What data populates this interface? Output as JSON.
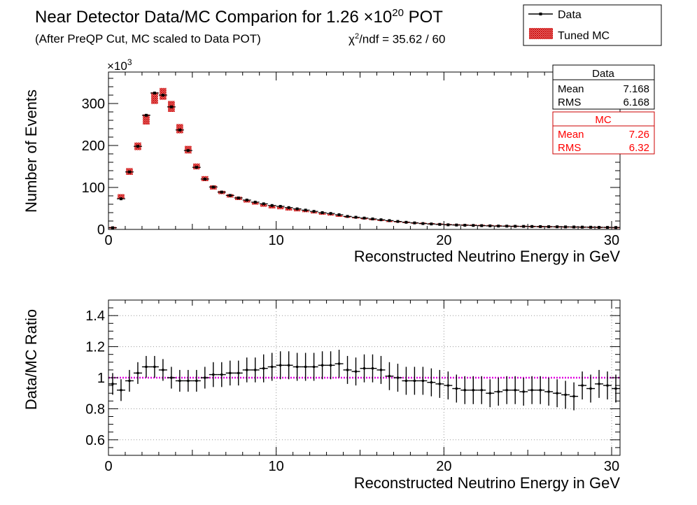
{
  "header": {
    "title_main": "Near Detector Data/MC Comparion for 1.26 ×10",
    "title_exp": "20",
    "title_tail": " POT",
    "subtitle": "(After PreQP Cut, MC scaled to Data POT)",
    "chi2_symbol": "χ",
    "chi2_exp": "2",
    "chi2_tail": "/ndf = 35.62 / 60"
  },
  "legend": {
    "data_label": "Data",
    "mc_label": "Tuned MC"
  },
  "stats": {
    "data": {
      "title": "Data",
      "mean_label": "Mean",
      "mean_value": "7.168",
      "rms_label": "RMS",
      "rms_value": "6.168"
    },
    "mc": {
      "title": "MC",
      "mean_label": "Mean",
      "mean_value": "7.26",
      "rms_label": "RMS",
      "rms_value": "6.32"
    }
  },
  "colors": {
    "data": "#000000",
    "mc": "#cc0000",
    "reference_line": "#e000e0",
    "grid": "#999999"
  },
  "chart_data": [
    {
      "type": "bar",
      "xlabel": "Reconstructed Neutrino Energy in GeV",
      "ylabel": "Number of Events",
      "y_multiplier_base": "×10",
      "y_multiplier_exp": "3",
      "xlim": [
        0,
        30.5
      ],
      "ylim": [
        0,
        375
      ],
      "xticks": [
        0,
        10,
        20,
        30
      ],
      "yticks": [
        0,
        100,
        200,
        300
      ],
      "grid": false,
      "legend_position": "top-right",
      "bin_width": 0.5,
      "x": [
        0.25,
        0.75,
        1.25,
        1.75,
        2.25,
        2.75,
        3.25,
        3.75,
        4.25,
        4.75,
        5.25,
        5.75,
        6.25,
        6.75,
        7.25,
        7.75,
        8.25,
        8.75,
        9.25,
        9.75,
        10.25,
        10.75,
        11.25,
        11.75,
        12.25,
        12.75,
        13.25,
        13.75,
        14.25,
        14.75,
        15.25,
        15.75,
        16.25,
        16.75,
        17.25,
        17.75,
        18.25,
        18.75,
        19.25,
        19.75,
        20.25,
        20.75,
        21.25,
        21.75,
        22.25,
        22.75,
        23.25,
        23.75,
        24.25,
        24.75,
        25.25,
        25.75,
        26.25,
        26.75,
        27.25,
        27.75,
        28.25,
        28.75,
        29.25,
        29.75,
        30.25
      ],
      "series": [
        {
          "name": "Data",
          "values": [
            4,
            73,
            137,
            198,
            272,
            325,
            320,
            292,
            237,
            188,
            148,
            120,
            101,
            89,
            81,
            75,
            70,
            65,
            61,
            57,
            55,
            52,
            49,
            46,
            43,
            40,
            38,
            35,
            31,
            29,
            27,
            25,
            23,
            21,
            19,
            17,
            15.5,
            14,
            13,
            12,
            11,
            10.5,
            10,
            9.5,
            9,
            8.5,
            8,
            7.8,
            7.5,
            7.2,
            7,
            6.8,
            6.5,
            6.3,
            6,
            5.8,
            5.5,
            5.3,
            5,
            4.8,
            4.6
          ]
        },
        {
          "name": "Tuned MC",
          "values": [
            4,
            78,
            138,
            198,
            262,
            313,
            323,
            293,
            240,
            190,
            150,
            121,
            100,
            88,
            80,
            74,
            67,
            62,
            57,
            53,
            51,
            48,
            46,
            43,
            40,
            37,
            35,
            32,
            30,
            28,
            26,
            24,
            22,
            20,
            19,
            17.5,
            16,
            15,
            14,
            13,
            12,
            11.5,
            11,
            10.5,
            10,
            9.5,
            9,
            8.5,
            8,
            7.8,
            7.5,
            7.2,
            7,
            6.8,
            6.5,
            6.3,
            6,
            5.8,
            5.5,
            5.3,
            5
          ],
          "uncertainty": [
            2,
            6,
            8,
            9,
            12,
            14,
            14,
            13,
            11,
            9,
            7,
            6,
            5,
            4,
            4,
            4,
            3,
            3,
            3,
            3,
            3,
            3,
            3,
            2,
            2,
            2,
            2,
            2,
            2,
            2,
            2,
            2,
            2,
            1,
            1,
            1,
            1,
            1,
            1,
            1,
            1,
            1,
            1,
            1,
            1,
            1,
            1,
            1,
            1,
            1,
            1,
            1,
            1,
            1,
            1,
            1,
            1,
            1,
            1,
            1,
            1
          ]
        }
      ]
    },
    {
      "type": "scatter",
      "xlabel": "Reconstructed Neutrino Energy in GeV",
      "ylabel": "Data/MC Ratio",
      "xlim": [
        0,
        30.5
      ],
      "ylim": [
        0.5,
        1.5
      ],
      "xticks": [
        0,
        10,
        20,
        30
      ],
      "yticks": [
        0.6,
        0.8,
        1,
        1.2,
        1.4
      ],
      "grid": true,
      "reference_value": 1,
      "x": [
        0.25,
        0.75,
        1.25,
        1.75,
        2.25,
        2.75,
        3.25,
        3.75,
        4.25,
        4.75,
        5.25,
        5.75,
        6.25,
        6.75,
        7.25,
        7.75,
        8.25,
        8.75,
        9.25,
        9.75,
        10.25,
        10.75,
        11.25,
        11.75,
        12.25,
        12.75,
        13.25,
        13.75,
        14.25,
        14.75,
        15.25,
        15.75,
        16.25,
        16.75,
        17.25,
        17.75,
        18.25,
        18.75,
        19.25,
        19.75,
        20.25,
        20.75,
        21.25,
        21.75,
        22.25,
        22.75,
        23.25,
        23.75,
        24.25,
        24.75,
        25.25,
        25.75,
        26.25,
        26.75,
        27.25,
        27.75,
        28.25,
        28.75,
        29.25,
        29.75,
        30.25
      ],
      "ratio": [
        0.96,
        0.92,
        0.98,
        1.03,
        1.07,
        1.07,
        1.05,
        1.0,
        0.98,
        0.98,
        0.98,
        1.0,
        1.02,
        1.02,
        1.03,
        1.03,
        1.05,
        1.05,
        1.06,
        1.07,
        1.08,
        1.08,
        1.07,
        1.07,
        1.07,
        1.08,
        1.08,
        1.09,
        1.05,
        1.04,
        1.06,
        1.06,
        1.05,
        1.01,
        1.0,
        0.98,
        0.98,
        0.98,
        0.97,
        0.96,
        0.95,
        0.93,
        0.92,
        0.92,
        0.92,
        0.9,
        0.91,
        0.92,
        0.92,
        0.91,
        0.92,
        0.92,
        0.91,
        0.9,
        0.89,
        0.88,
        0.95,
        0.93,
        0.96,
        0.95,
        0.93
      ],
      "error": [
        0.07,
        0.07,
        0.07,
        0.07,
        0.07,
        0.07,
        0.07,
        0.07,
        0.07,
        0.07,
        0.07,
        0.07,
        0.08,
        0.08,
        0.08,
        0.08,
        0.08,
        0.08,
        0.09,
        0.09,
        0.09,
        0.09,
        0.09,
        0.09,
        0.09,
        0.09,
        0.09,
        0.09,
        0.09,
        0.09,
        0.09,
        0.09,
        0.09,
        0.09,
        0.09,
        0.09,
        0.09,
        0.09,
        0.09,
        0.09,
        0.09,
        0.09,
        0.09,
        0.09,
        0.09,
        0.09,
        0.09,
        0.09,
        0.09,
        0.09,
        0.09,
        0.09,
        0.09,
        0.09,
        0.09,
        0.09,
        0.09,
        0.09,
        0.09,
        0.09,
        0.09
      ]
    }
  ]
}
